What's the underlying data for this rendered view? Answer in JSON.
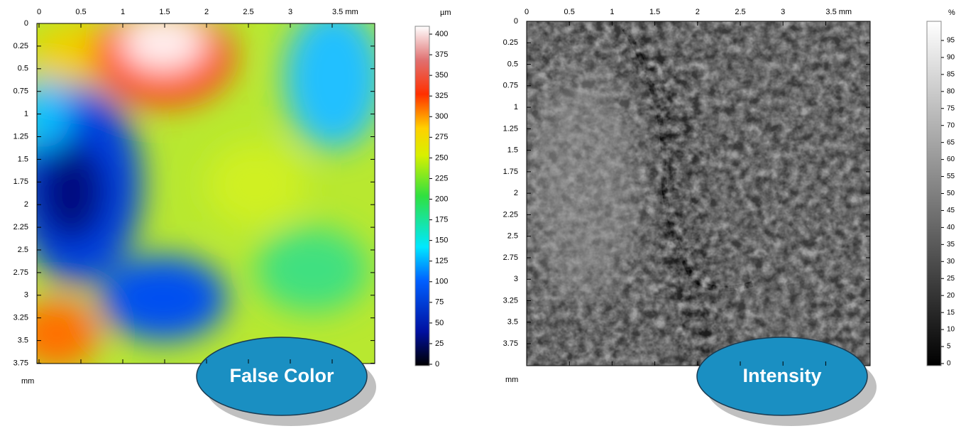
{
  "panels": [
    {
      "x_ticks": [
        "0",
        "0.5",
        "1",
        "1.5",
        "2",
        "2.5",
        "3",
        "3.5 mm"
      ],
      "y_ticks": [
        "0",
        "0.25",
        "0.5",
        "0.75",
        "1",
        "1.25",
        "1.5",
        "1.75",
        "2",
        "2.25",
        "2.5",
        "2.75",
        "3",
        "3.25",
        "3.5",
        "3.75"
      ],
      "y_unit": "mm",
      "scale_unit": "µm",
      "scale_ticks": [
        "0",
        "25",
        "50",
        "75",
        "100",
        "125",
        "150",
        "175",
        "200",
        "225",
        "250",
        "275",
        "300",
        "325",
        "350",
        "375",
        "400"
      ],
      "label": "False Color"
    },
    {
      "x_ticks": [
        "0",
        "0.5",
        "1",
        "1.5",
        "2",
        "2.5",
        "3",
        "3.5 mm"
      ],
      "y_ticks": [
        "0",
        "0.25",
        "0.5",
        "0.75",
        "1",
        "1.25",
        "1.5",
        "1.75",
        "2",
        "2.25",
        "2.5",
        "2.75",
        "3",
        "3.25",
        "3.5",
        "3.75"
      ],
      "y_unit": "mm",
      "scale_unit": "%",
      "scale_ticks": [
        "0",
        "5",
        "10",
        "15",
        "20",
        "25",
        "30",
        "35",
        "40",
        "45",
        "50",
        "55",
        "60",
        "65",
        "70",
        "75",
        "80",
        "85",
        "90",
        "95"
      ],
      "label": "Intensity"
    }
  ]
}
